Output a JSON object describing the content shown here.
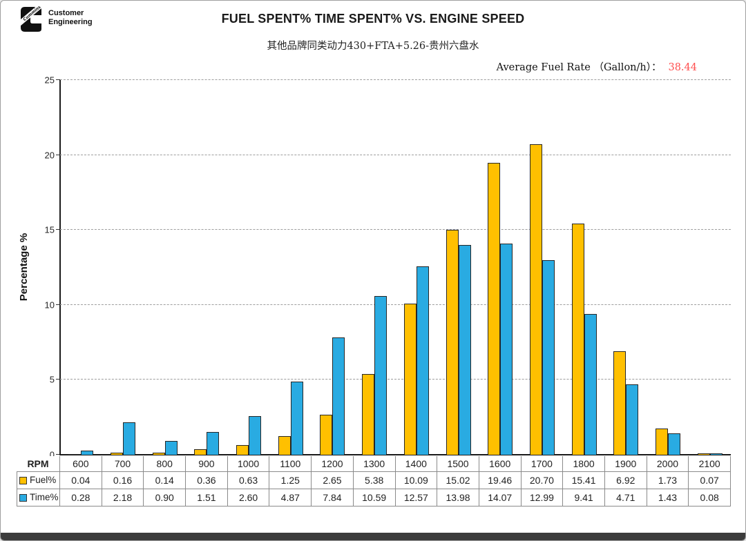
{
  "header": {
    "logo_brand": "Cummins",
    "logo_line1": "Customer",
    "logo_line2": "Engineering",
    "title": "FUEL SPENT% TIME SPENT% VS. ENGINE SPEED",
    "subtitle": "其他品牌同类动力430+FTA+5.26-贵州六盘水",
    "avg_fuel_rate_label": "Average Fuel Rate （Gallon/h）：",
    "avg_fuel_rate_value": "38.44",
    "avg_fuel_rate_value_color": "#ff4d4d"
  },
  "chart_data": {
    "type": "bar",
    "title": "FUEL SPENT% TIME SPENT% VS. ENGINE SPEED",
    "subtitle": "其他品牌同类动力430+FTA+5.26-贵州六盘水",
    "annotation": "Average Fuel Rate （Gallon/h）： 38.44",
    "categories": [
      600,
      700,
      800,
      900,
      1000,
      1100,
      1200,
      1300,
      1400,
      1500,
      1600,
      1700,
      1800,
      1900,
      2000,
      2100
    ],
    "series": [
      {
        "name": "Fuel%",
        "color": "#FFC000",
        "values": [
          0.04,
          0.16,
          0.14,
          0.36,
          0.63,
          1.25,
          2.65,
          5.38,
          10.09,
          15.02,
          19.46,
          20.7,
          15.41,
          6.92,
          1.73,
          0.07
        ]
      },
      {
        "name": "Time%",
        "color": "#29ABE2",
        "values": [
          0.28,
          2.18,
          0.9,
          1.51,
          2.6,
          4.87,
          7.84,
          10.59,
          12.57,
          13.98,
          14.07,
          12.99,
          9.41,
          4.71,
          1.43,
          0.08
        ]
      }
    ],
    "xlabel": "RPM",
    "ylabel": "Percentage %",
    "ylim": [
      0,
      25
    ],
    "yticks": [
      0,
      5,
      10,
      15,
      20,
      25
    ],
    "grid": "horizontal-dashed",
    "legend_position": "table-row-labels"
  },
  "table": {
    "corner_label": "RPM",
    "column_headers": [
      "600",
      "700",
      "800",
      "900",
      "1000",
      "1100",
      "1200",
      "1300",
      "1400",
      "1500",
      "1600",
      "1700",
      "1800",
      "1900",
      "2000",
      "2100"
    ],
    "rows": [
      {
        "label": "Fuel%",
        "swatch_color": "#FFC000",
        "values": [
          "0.04",
          "0.16",
          "0.14",
          "0.36",
          "0.63",
          "1.25",
          "2.65",
          "5.38",
          "10.09",
          "15.02",
          "19.46",
          "20.70",
          "15.41",
          "6.92",
          "1.73",
          "0.07"
        ]
      },
      {
        "label": "Time%",
        "swatch_color": "#29ABE2",
        "values": [
          "0.28",
          "2.18",
          "0.90",
          "1.51",
          "2.60",
          "4.87",
          "7.84",
          "10.59",
          "12.57",
          "13.98",
          "14.07",
          "12.99",
          "9.41",
          "4.71",
          "1.43",
          "0.08"
        ]
      }
    ]
  }
}
